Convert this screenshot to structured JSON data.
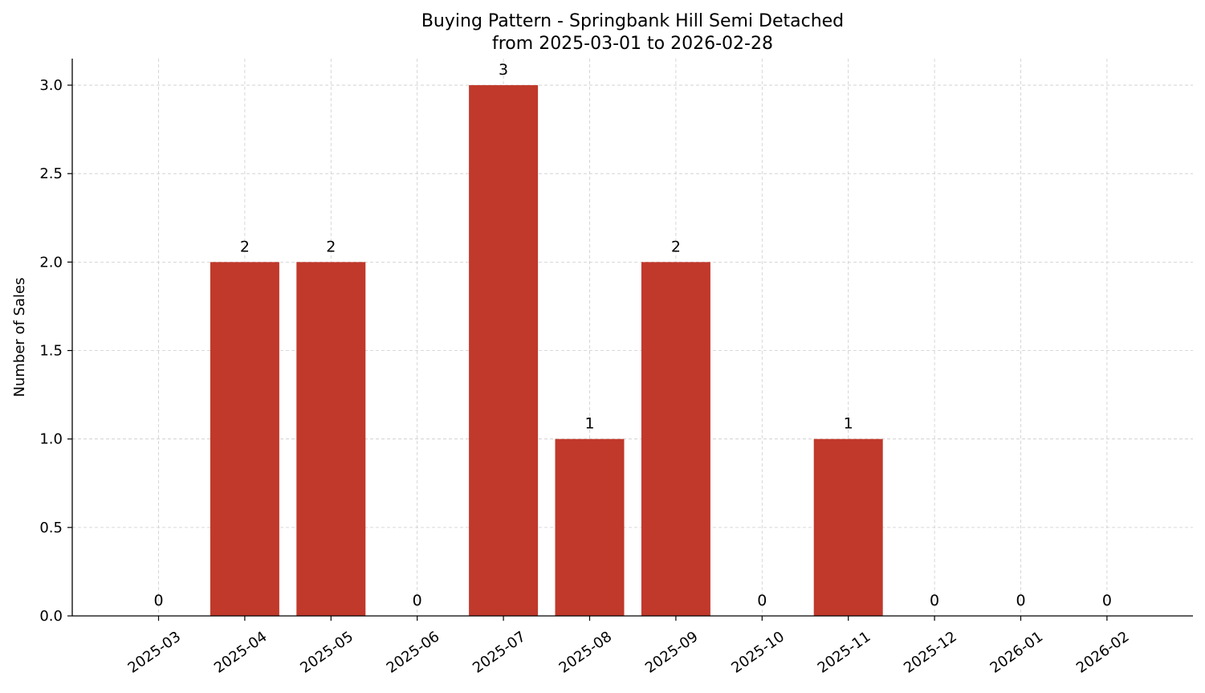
{
  "chart_data": {
    "type": "bar",
    "title": "Buying Pattern - Springbank Hill Semi Detached",
    "subtitle": "from 2025-03-01 to 2026-02-28",
    "xlabel": "",
    "ylabel": "Number of Sales",
    "categories": [
      "2025-03",
      "2025-04",
      "2025-05",
      "2025-06",
      "2025-07",
      "2025-08",
      "2025-09",
      "2025-10",
      "2025-11",
      "2025-12",
      "2026-01",
      "2026-02"
    ],
    "values": [
      0,
      2,
      2,
      0,
      3,
      1,
      2,
      0,
      1,
      0,
      0,
      0
    ],
    "value_labels": [
      "0",
      "2",
      "2",
      "0",
      "3",
      "1",
      "2",
      "0",
      "1",
      "0",
      "0",
      "0"
    ],
    "yticks": [
      "0.0",
      "0.5",
      "1.0",
      "1.5",
      "2.0",
      "2.5",
      "3.0"
    ],
    "ylim": [
      0,
      3.15
    ],
    "grid": true,
    "legend": "none",
    "bar_color": "#c0392b"
  }
}
